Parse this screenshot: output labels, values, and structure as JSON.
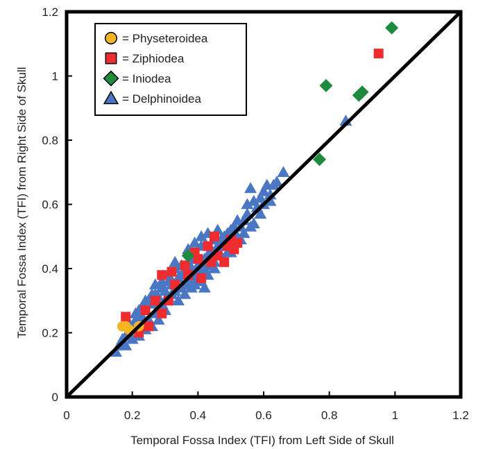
{
  "chart_data": {
    "type": "scatter",
    "title": "",
    "xlabel": "Temporal Fossa Index (TFI) from Left Side of Skull",
    "ylabel": "Temporal Fossa Index (TFI) from Right Side of Skull",
    "xlim": [
      0,
      1.2
    ],
    "ylim": [
      0,
      1.2
    ],
    "xticks": [
      "0",
      "0.2",
      "0.4",
      "0.6",
      "0.8",
      "1",
      "1.2"
    ],
    "yticks": [
      "0",
      "0.2",
      "0.4",
      "0.6",
      "0.8",
      "1",
      "1.2"
    ],
    "grid": false,
    "legend_position": "top-left",
    "reference_line": {
      "from": [
        0,
        0
      ],
      "to": [
        1.2,
        1.2
      ],
      "color": "#000000"
    },
    "series": [
      {
        "name": "= Physeteroidea",
        "marker": "circle",
        "color": "#f5b523",
        "points": [
          [
            0.17,
            0.22
          ],
          [
            0.18,
            0.22
          ],
          [
            0.19,
            0.21
          ],
          [
            0.22,
            0.22
          ]
        ]
      },
      {
        "name": "= Ziphiodea",
        "marker": "square",
        "color": "#ee2b2e",
        "points": [
          [
            0.95,
            1.07
          ],
          [
            0.18,
            0.25
          ],
          [
            0.22,
            0.2
          ],
          [
            0.24,
            0.27
          ],
          [
            0.25,
            0.22
          ],
          [
            0.27,
            0.3
          ],
          [
            0.29,
            0.38
          ],
          [
            0.29,
            0.26
          ],
          [
            0.31,
            0.3
          ],
          [
            0.32,
            0.39
          ],
          [
            0.33,
            0.35
          ],
          [
            0.36,
            0.41
          ],
          [
            0.37,
            0.38
          ],
          [
            0.39,
            0.45
          ],
          [
            0.4,
            0.43
          ],
          [
            0.41,
            0.37
          ],
          [
            0.43,
            0.47
          ],
          [
            0.44,
            0.42
          ],
          [
            0.45,
            0.5
          ],
          [
            0.46,
            0.44
          ],
          [
            0.48,
            0.42
          ],
          [
            0.49,
            0.47
          ],
          [
            0.5,
            0.49
          ],
          [
            0.51,
            0.46
          ],
          [
            0.52,
            0.48
          ]
        ]
      },
      {
        "name": "= Iniodea",
        "marker": "diamond",
        "color": "#1e8a3e",
        "points": [
          [
            0.99,
            1.15
          ],
          [
            0.79,
            0.97
          ],
          [
            0.9,
            0.95
          ],
          [
            0.89,
            0.94
          ],
          [
            0.77,
            0.74
          ],
          [
            0.37,
            0.44
          ]
        ]
      },
      {
        "name": "= Delphinoidea",
        "marker": "triangle",
        "color": "#4a77c3",
        "points": [
          [
            0.85,
            0.86
          ],
          [
            0.66,
            0.7
          ],
          [
            0.63,
            0.66
          ],
          [
            0.61,
            0.66
          ],
          [
            0.6,
            0.64
          ],
          [
            0.59,
            0.62
          ],
          [
            0.57,
            0.61
          ],
          [
            0.56,
            0.65
          ],
          [
            0.58,
            0.59
          ],
          [
            0.55,
            0.57
          ],
          [
            0.54,
            0.55
          ],
          [
            0.53,
            0.53
          ],
          [
            0.52,
            0.55
          ],
          [
            0.54,
            0.51
          ],
          [
            0.51,
            0.53
          ],
          [
            0.49,
            0.51
          ],
          [
            0.47,
            0.49
          ],
          [
            0.48,
            0.47
          ],
          [
            0.5,
            0.45
          ],
          [
            0.45,
            0.49
          ],
          [
            0.44,
            0.46
          ],
          [
            0.43,
            0.44
          ],
          [
            0.41,
            0.47
          ],
          [
            0.42,
            0.43
          ],
          [
            0.4,
            0.41
          ],
          [
            0.39,
            0.43
          ],
          [
            0.38,
            0.4
          ],
          [
            0.37,
            0.42
          ],
          [
            0.36,
            0.39
          ],
          [
            0.35,
            0.41
          ],
          [
            0.34,
            0.37
          ],
          [
            0.33,
            0.4
          ],
          [
            0.32,
            0.35
          ],
          [
            0.31,
            0.36
          ],
          [
            0.3,
            0.33
          ],
          [
            0.29,
            0.34
          ],
          [
            0.28,
            0.31
          ],
          [
            0.27,
            0.32
          ],
          [
            0.26,
            0.29
          ],
          [
            0.25,
            0.3
          ],
          [
            0.24,
            0.27
          ],
          [
            0.23,
            0.25
          ],
          [
            0.22,
            0.27
          ],
          [
            0.21,
            0.24
          ],
          [
            0.2,
            0.22
          ],
          [
            0.19,
            0.2
          ],
          [
            0.18,
            0.19
          ],
          [
            0.17,
            0.18
          ],
          [
            0.16,
            0.16
          ],
          [
            0.15,
            0.14
          ],
          [
            0.18,
            0.16
          ],
          [
            0.2,
            0.18
          ],
          [
            0.22,
            0.19
          ],
          [
            0.25,
            0.24
          ],
          [
            0.27,
            0.26
          ],
          [
            0.29,
            0.29
          ],
          [
            0.31,
            0.31
          ],
          [
            0.33,
            0.33
          ],
          [
            0.35,
            0.34
          ],
          [
            0.37,
            0.36
          ],
          [
            0.39,
            0.37
          ],
          [
            0.41,
            0.39
          ],
          [
            0.43,
            0.41
          ],
          [
            0.45,
            0.42
          ],
          [
            0.47,
            0.44
          ],
          [
            0.49,
            0.45
          ],
          [
            0.38,
            0.34
          ],
          [
            0.36,
            0.32
          ],
          [
            0.34,
            0.3
          ],
          [
            0.3,
            0.27
          ],
          [
            0.28,
            0.24
          ],
          [
            0.26,
            0.22
          ],
          [
            0.24,
            0.21
          ],
          [
            0.4,
            0.38
          ],
          [
            0.42,
            0.4
          ],
          [
            0.44,
            0.43
          ],
          [
            0.46,
            0.47
          ],
          [
            0.48,
            0.5
          ],
          [
            0.5,
            0.52
          ],
          [
            0.52,
            0.5
          ],
          [
            0.35,
            0.38
          ],
          [
            0.33,
            0.42
          ],
          [
            0.31,
            0.38
          ],
          [
            0.29,
            0.36
          ],
          [
            0.27,
            0.35
          ],
          [
            0.26,
            0.32
          ],
          [
            0.24,
            0.3
          ],
          [
            0.23,
            0.28
          ],
          [
            0.21,
            0.26
          ],
          [
            0.19,
            0.23
          ],
          [
            0.43,
            0.51
          ],
          [
            0.41,
            0.5
          ],
          [
            0.39,
            0.48
          ],
          [
            0.37,
            0.46
          ],
          [
            0.45,
            0.4
          ],
          [
            0.43,
            0.38
          ],
          [
            0.41,
            0.36
          ],
          [
            0.39,
            0.35
          ],
          [
            0.36,
            0.35
          ],
          [
            0.34,
            0.34
          ],
          [
            0.32,
            0.32
          ],
          [
            0.3,
            0.3
          ],
          [
            0.28,
            0.28
          ],
          [
            0.46,
            0.52
          ],
          [
            0.55,
            0.6
          ],
          [
            0.57,
            0.54
          ],
          [
            0.6,
            0.6
          ],
          [
            0.62,
            0.63
          ],
          [
            0.64,
            0.67
          ],
          [
            0.62,
            0.61
          ],
          [
            0.59,
            0.57
          ],
          [
            0.56,
            0.53
          ],
          [
            0.53,
            0.49
          ],
          [
            0.51,
            0.48
          ],
          [
            0.42,
            0.34
          ]
        ]
      }
    ]
  }
}
